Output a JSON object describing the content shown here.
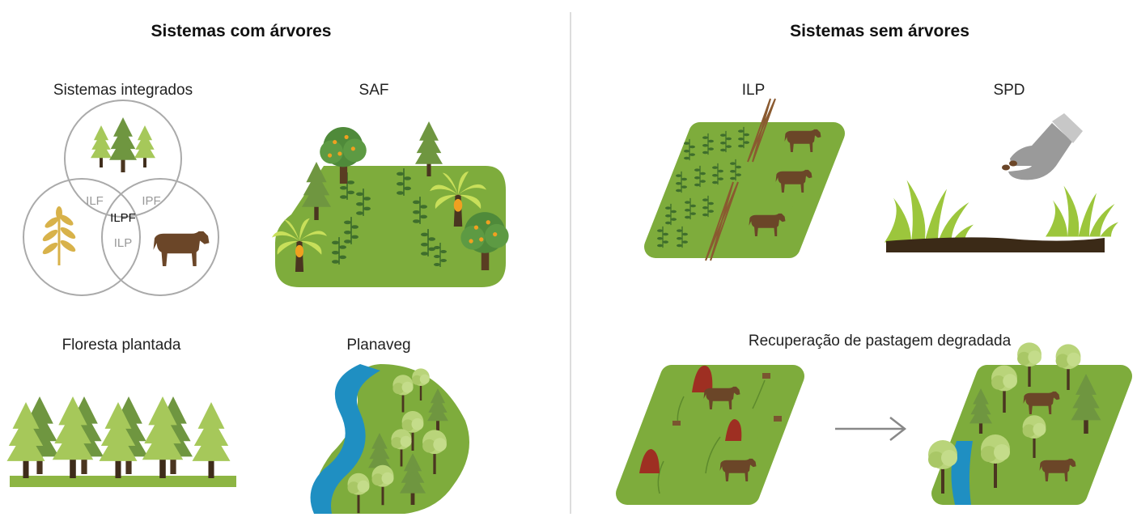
{
  "left_section": {
    "title": "Sistemas com árvores",
    "items": [
      {
        "label": "Sistemas integrados",
        "venn": [
          "ILF",
          "IPF",
          "ILPF",
          "ILP"
        ]
      },
      {
        "label": "SAF"
      },
      {
        "label": "Floresta plantada"
      },
      {
        "label": "Planaveg"
      }
    ]
  },
  "right_section": {
    "title": "Sistemas sem árvores",
    "items": [
      {
        "label": "ILP"
      },
      {
        "label": "SPD"
      },
      {
        "label": "Recuperação de pastagem degradada"
      }
    ]
  }
}
